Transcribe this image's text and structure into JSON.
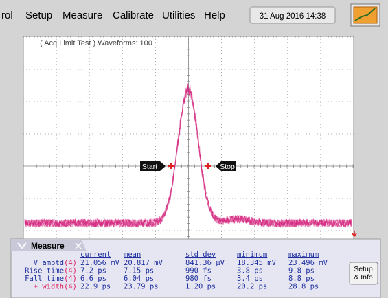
{
  "menu": {
    "items": [
      "rol",
      "Setup",
      "Measure",
      "Calibrate",
      "Utilities",
      "Help"
    ],
    "datetime": "31 Aug 2016 14:38"
  },
  "screen": {
    "status": "( Acq Limit Test ) Waveforms: 100",
    "markers": [
      "Start",
      "Stop"
    ]
  },
  "measure": {
    "title": "Measure",
    "columns": [
      "current",
      "mean",
      "std dev",
      "minimum",
      "maximum"
    ],
    "rows": [
      {
        "label": "V amptd",
        "channel": "(4)",
        "values": [
          "21.056 mV",
          "20.817 mV",
          "841.36 µV",
          "18.345 mV",
          "23.496 mV"
        ]
      },
      {
        "label": "Rise time",
        "channel": "(4)",
        "values": [
          "7.2 ps",
          "7.15 ps",
          "990 fs",
          "3.8 ps",
          "9.8 ps"
        ]
      },
      {
        "label": "Fall time",
        "channel": "(4)",
        "values": [
          "6.6 ps",
          "6.04 ps",
          "980 fs",
          "3.4 ps",
          "8.8 ps"
        ]
      },
      {
        "label": "+ width",
        "channel": "(4)",
        "values": [
          "22.9 ps",
          "23.79 ps",
          "1.20 ps",
          "20.2 ps",
          "28.8 ps"
        ]
      }
    ],
    "button": [
      "Setup",
      "& Info"
    ]
  }
}
